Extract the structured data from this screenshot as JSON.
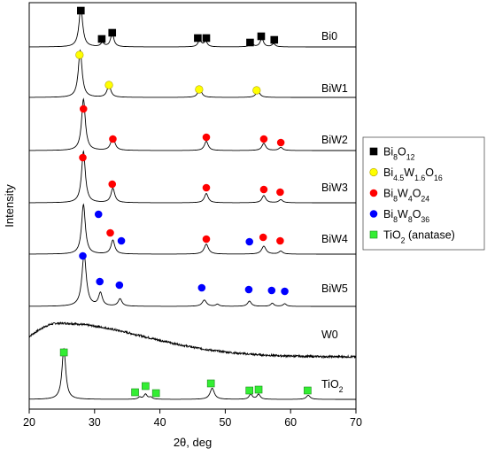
{
  "chart_data": {
    "type": "line",
    "xlabel": "2θ, deg",
    "ylabel": "Intensity",
    "xlim": [
      20,
      70
    ],
    "xticks": [
      20,
      30,
      40,
      50,
      60,
      70
    ],
    "grid": false,
    "legend_position": "right",
    "legend": [
      {
        "marker": "square",
        "color": "#000000",
        "parts": [
          [
            "Bi",
            ""
          ],
          [
            "8",
            "sub"
          ],
          [
            "O",
            ""
          ],
          [
            "12",
            "sub"
          ]
        ]
      },
      {
        "marker": "circle",
        "color": "#ffff00",
        "parts": [
          [
            "Bi",
            ""
          ],
          [
            "4.5",
            "sub"
          ],
          [
            "W",
            ""
          ],
          [
            "1.6",
            "sub"
          ],
          [
            "O",
            ""
          ],
          [
            "16",
            "sub"
          ]
        ]
      },
      {
        "marker": "circle",
        "color": "#ff0000",
        "parts": [
          [
            "Bi",
            ""
          ],
          [
            "8",
            "sub"
          ],
          [
            "W",
            ""
          ],
          [
            "4",
            "sub"
          ],
          [
            "O",
            ""
          ],
          [
            "24",
            "sub"
          ]
        ]
      },
      {
        "marker": "circle",
        "color": "#0000ff",
        "parts": [
          [
            "Bi",
            ""
          ],
          [
            "8",
            "sub"
          ],
          [
            "W",
            ""
          ],
          [
            "8",
            "sub"
          ],
          [
            "O",
            ""
          ],
          [
            "36",
            "sub"
          ]
        ]
      },
      {
        "marker": "square",
        "color": "#33ee33",
        "parts": [
          [
            "TiO",
            ""
          ],
          [
            "2",
            "sub"
          ],
          [
            " (anatase)",
            ""
          ]
        ]
      }
    ],
    "series": [
      {
        "name": "Bi0",
        "name_parts": [
          [
            "Bi0",
            ""
          ]
        ],
        "peaks": [
          [
            27.9,
            1.0,
            0.35
          ],
          [
            31.2,
            0.1,
            0.3
          ],
          [
            32.7,
            0.35,
            0.3
          ],
          [
            46.1,
            0.18,
            0.3
          ],
          [
            47.0,
            0.14,
            0.3
          ],
          [
            54.0,
            0.1,
            0.3
          ],
          [
            55.6,
            0.22,
            0.3
          ],
          [
            57.4,
            0.08,
            0.3
          ]
        ],
        "markers": [
          {
            "x": 27.9,
            "type": 0
          },
          {
            "x": 31.1,
            "type": 0
          },
          {
            "x": 32.7,
            "type": 0
          },
          {
            "x": 45.8,
            "type": 0
          },
          {
            "x": 47.1,
            "type": 0
          },
          {
            "x": 53.8,
            "type": 0
          },
          {
            "x": 55.5,
            "type": 0
          },
          {
            "x": 57.5,
            "type": 0
          }
        ]
      },
      {
        "name": "BiW1",
        "name_parts": [
          [
            "BiW1",
            ""
          ]
        ],
        "peaks": [
          [
            27.8,
            1.0,
            0.35
          ],
          [
            32.2,
            0.25,
            0.35
          ],
          [
            46.1,
            0.18,
            0.35
          ],
          [
            55.0,
            0.14,
            0.35
          ]
        ],
        "markers": [
          {
            "x": 27.7,
            "type": 1
          },
          {
            "x": 32.2,
            "type": 1
          },
          {
            "x": 46.0,
            "type": 1
          },
          {
            "x": 54.8,
            "type": 1
          }
        ]
      },
      {
        "name": "BiW2",
        "name_parts": [
          [
            "BiW2",
            ""
          ]
        ],
        "peaks": [
          [
            28.3,
            1.0,
            0.35
          ],
          [
            32.8,
            0.28,
            0.35
          ],
          [
            47.1,
            0.18,
            0.35
          ],
          [
            55.9,
            0.14,
            0.35
          ],
          [
            58.5,
            0.06,
            0.35
          ]
        ],
        "markers": [
          {
            "x": 28.3,
            "type": 2
          },
          {
            "x": 32.8,
            "type": 2
          },
          {
            "x": 47.1,
            "type": 2
          },
          {
            "x": 55.9,
            "type": 2
          },
          {
            "x": 58.5,
            "type": 2
          }
        ]
      },
      {
        "name": "BiW3",
        "name_parts": [
          [
            "BiW3",
            ""
          ]
        ],
        "peaks": [
          [
            28.3,
            1.0,
            0.35
          ],
          [
            32.8,
            0.28,
            0.35
          ],
          [
            47.1,
            0.18,
            0.35
          ],
          [
            55.9,
            0.14,
            0.35
          ],
          [
            58.5,
            0.06,
            0.35
          ]
        ],
        "markers": [
          {
            "x": 28.2,
            "type": 2
          },
          {
            "x": 32.7,
            "type": 2
          },
          {
            "x": 47.1,
            "type": 2
          },
          {
            "x": 55.9,
            "type": 2
          },
          {
            "x": 58.4,
            "type": 2
          }
        ]
      },
      {
        "name": "BiW4",
        "name_parts": [
          [
            "BiW4",
            ""
          ]
        ],
        "peaks": [
          [
            28.3,
            1.0,
            0.35
          ],
          [
            32.8,
            0.28,
            0.35
          ],
          [
            47.1,
            0.2,
            0.4
          ],
          [
            55.9,
            0.16,
            0.4
          ],
          [
            58.5,
            0.06,
            0.35
          ]
        ],
        "markers": [
          {
            "x": 30.6,
            "type": 3
          },
          {
            "x": 32.4,
            "type": 2
          },
          {
            "x": 34.1,
            "type": 3
          },
          {
            "x": 47.1,
            "type": 2
          },
          {
            "x": 53.7,
            "type": 3
          },
          {
            "x": 55.8,
            "type": 2
          },
          {
            "x": 58.4,
            "type": 2
          }
        ]
      },
      {
        "name": "BiW5",
        "name_parts": [
          [
            "BiW5",
            ""
          ]
        ],
        "peaks": [
          [
            28.4,
            1.0,
            0.4
          ],
          [
            30.9,
            0.25,
            0.35
          ],
          [
            33.9,
            0.14,
            0.35
          ],
          [
            46.8,
            0.12,
            0.4
          ],
          [
            48.8,
            0.04,
            0.3
          ],
          [
            53.7,
            0.1,
            0.35
          ],
          [
            57.2,
            0.06,
            0.3
          ],
          [
            59.1,
            0.05,
            0.3
          ]
        ],
        "markers": [
          {
            "x": 28.2,
            "type": 3
          },
          {
            "x": 30.8,
            "type": 3
          },
          {
            "x": 33.8,
            "type": 3
          },
          {
            "x": 46.4,
            "type": 3
          },
          {
            "x": 53.6,
            "type": 3
          },
          {
            "x": 57.1,
            "type": 3
          },
          {
            "x": 59.1,
            "type": 3
          }
        ]
      },
      {
        "name": "W0",
        "name_parts": [
          [
            "W0",
            ""
          ]
        ],
        "amorphous": true,
        "markers": []
      },
      {
        "name": "TiO2",
        "name_parts": [
          [
            "TiO",
            ""
          ],
          [
            "2",
            "sub"
          ]
        ],
        "peaks": [
          [
            25.3,
            1.0,
            0.35
          ],
          [
            36.9,
            0.04,
            0.3
          ],
          [
            37.8,
            0.1,
            0.3
          ],
          [
            38.6,
            0.04,
            0.3
          ],
          [
            48.0,
            0.22,
            0.4
          ],
          [
            53.9,
            0.1,
            0.3
          ],
          [
            55.1,
            0.1,
            0.3
          ],
          [
            62.7,
            0.08,
            0.35
          ]
        ],
        "markers": [
          {
            "x": 25.3,
            "type": 4
          },
          {
            "x": 36.2,
            "type": 4
          },
          {
            "x": 37.8,
            "type": 4
          },
          {
            "x": 39.4,
            "type": 4
          },
          {
            "x": 47.8,
            "type": 4
          },
          {
            "x": 53.7,
            "type": 4
          },
          {
            "x": 55.1,
            "type": 4
          },
          {
            "x": 62.6,
            "type": 4
          }
        ]
      }
    ]
  }
}
